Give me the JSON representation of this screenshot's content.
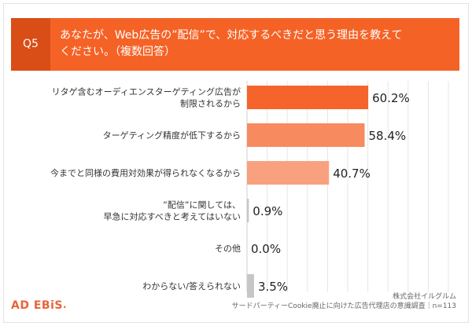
{
  "question": {
    "badge": "Q5",
    "text_line1": "あなたが、Web広告の”配信”で、対応するべきだと思う理由を教えて",
    "text_line2": "ください。（複数回答）"
  },
  "colors": {
    "header": "#f56226",
    "badge": "#d94e17",
    "bar_primary": "#f5642b",
    "bar_secondary": "#f78a5f",
    "bar_tertiary": "#f9a17e",
    "bar_gray": "#c6c6c6",
    "grid": "#e6e6e6"
  },
  "chart_data": {
    "type": "bar",
    "orientation": "horizontal",
    "categories": [
      [
        "リタゲ含むオーディエンスターゲティング広告が",
        "制限されるから"
      ],
      [
        "ターゲティング精度が低下するから"
      ],
      [
        "今までと同様の費用対効果が得られなくなるから"
      ],
      [
        "”配信”に関しては、",
        "早急に対応すべきと考えてはいない"
      ],
      [
        "その他"
      ],
      [
        "わからない/答えられない"
      ]
    ],
    "values": [
      60.2,
      58.4,
      40.7,
      0.9,
      0.0,
      3.5
    ],
    "value_labels": [
      "60.2%",
      "58.4%",
      "40.7%",
      "0.9%",
      "0.0%",
      "3.5%"
    ],
    "xlim": [
      0,
      100
    ],
    "grid": true,
    "title": "",
    "xlabel": "",
    "ylabel": ""
  },
  "footer": {
    "brand_main": "AD EBiS",
    "brand_suffix": ".",
    "source_line1": "株式会社イルグルム",
    "source_line2": "サードパーティーCookie廃止に向けた広告代理店の意識調査｜n=113"
  }
}
